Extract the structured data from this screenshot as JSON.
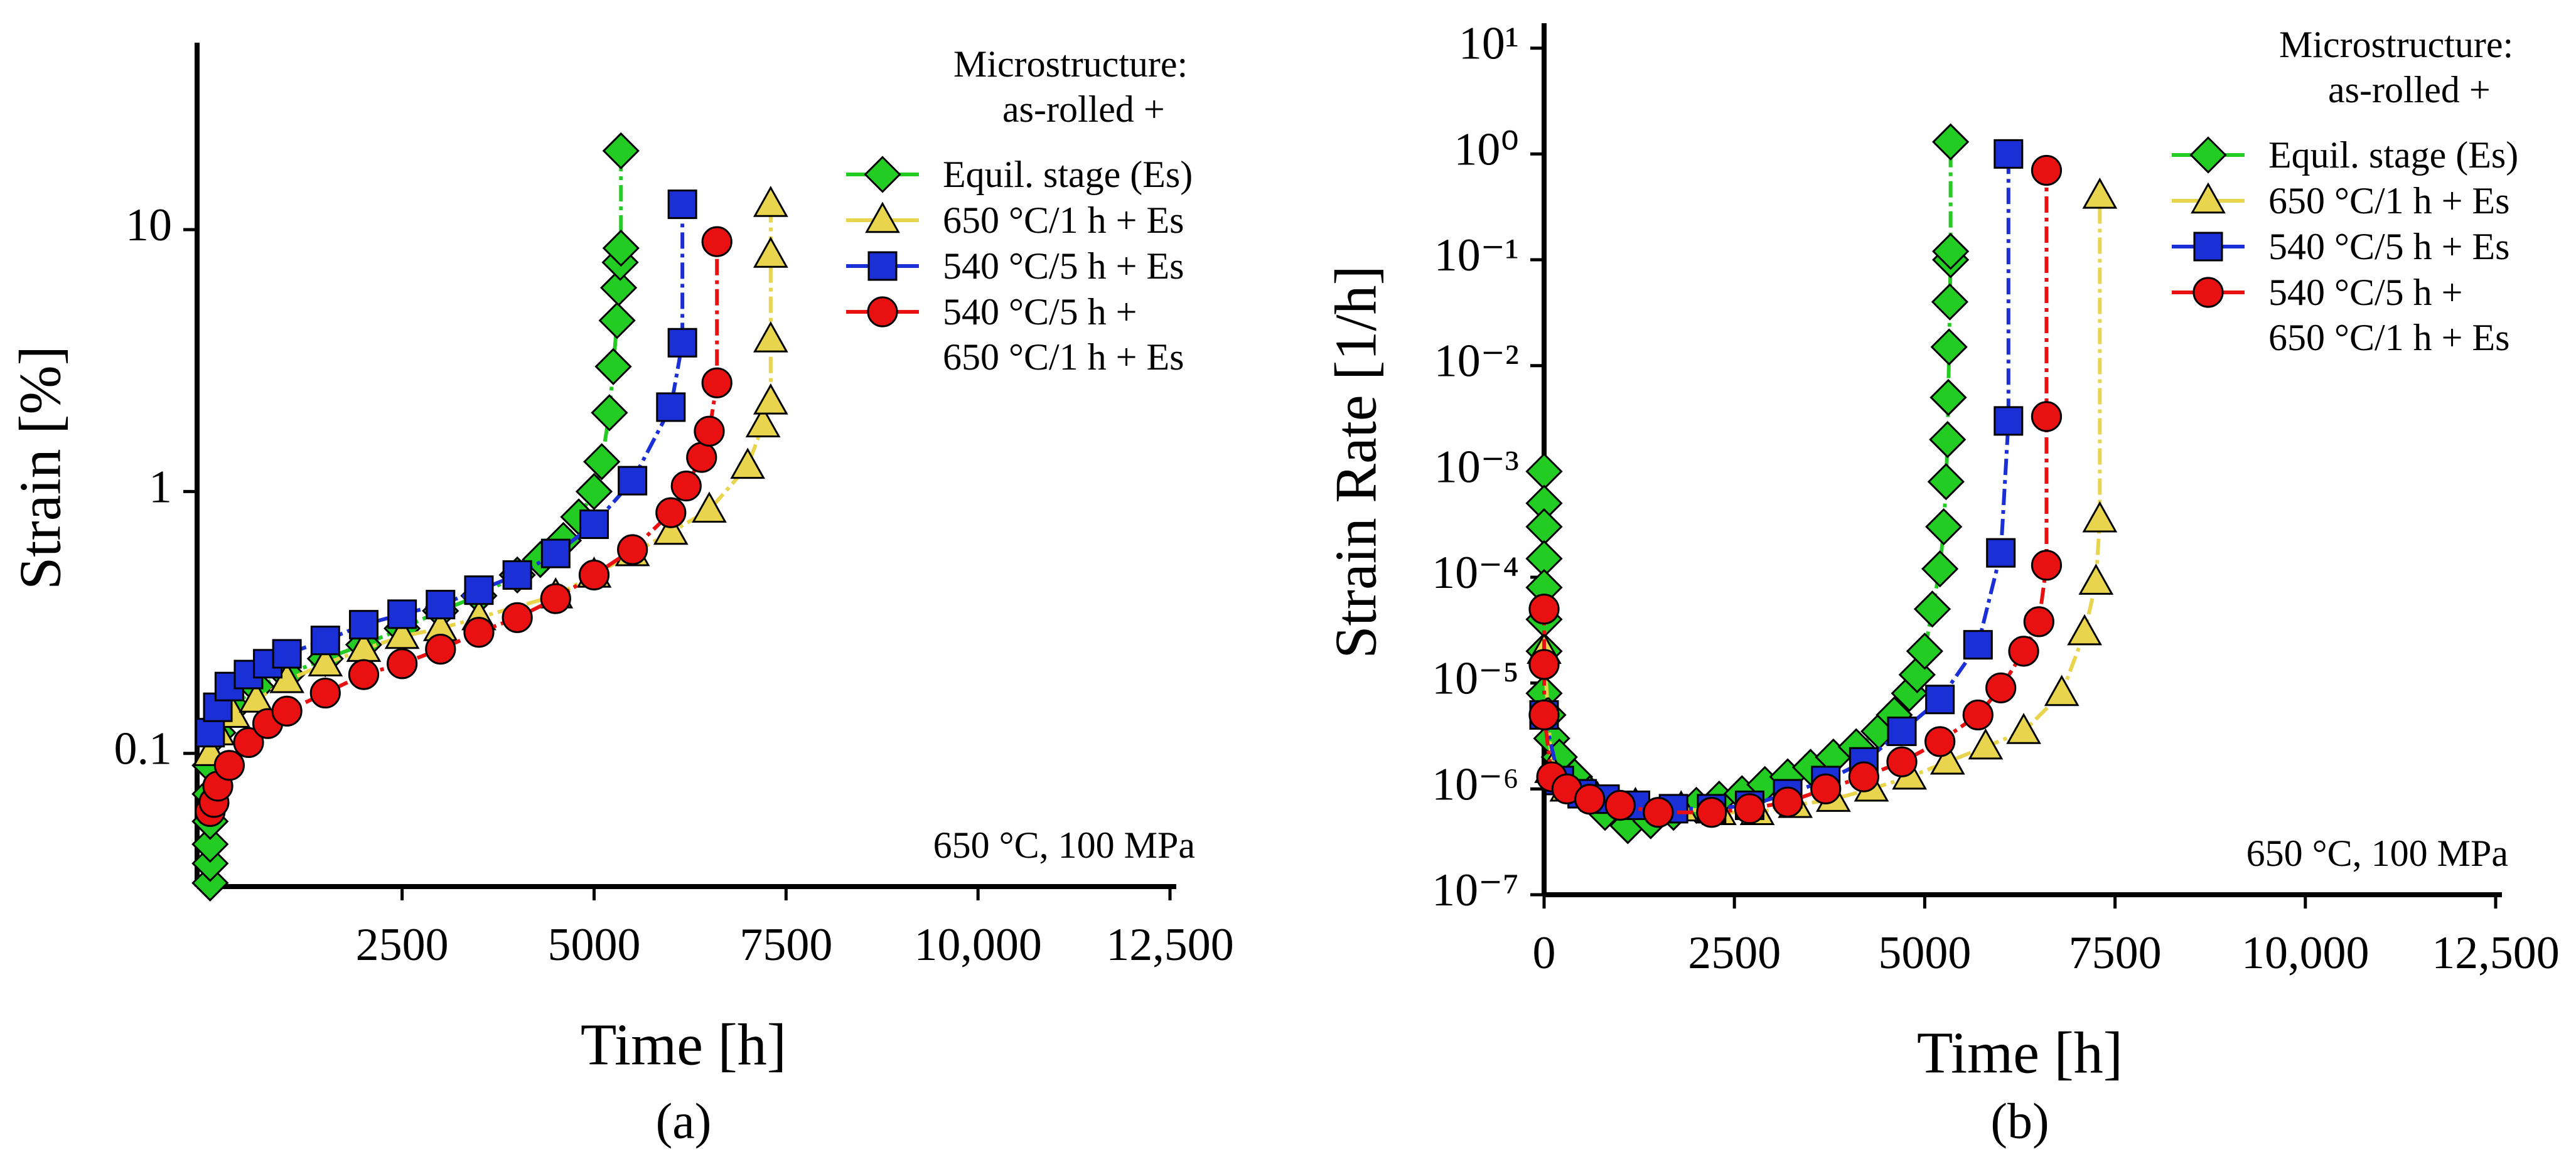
{
  "chart_data": [
    {
      "type": "line",
      "panel_label": "(a)",
      "xlabel": "Time [h]",
      "ylabel": "Strain [%]",
      "yscale": "log",
      "xlim": [
        -170,
        12500
      ],
      "ylim": [
        0.031,
        49
      ],
      "xticks": [
        2500,
        5000,
        7500,
        {
          "value": 10000,
          "label": "10,000"
        },
        {
          "value": 12500,
          "label": "12,500"
        }
      ],
      "yticks": [
        0.1,
        1,
        10
      ],
      "legend": "upper right",
      "legend_title": [
        "Microstructure:",
        "as-rolled +"
      ],
      "annotation": "650 °C, 100 MPa",
      "series": [
        {
          "name": "Equil. stage (Es)",
          "color": "#22cc22",
          "marker": "diamond",
          "x": [
            0,
            0,
            0,
            0,
            0,
            0,
            100,
            300,
            600,
            1000,
            1500,
            2000,
            2500,
            3000,
            3500,
            4000,
            4300,
            4600,
            4800,
            5000,
            5100,
            5200,
            5250,
            5300,
            5320,
            5340,
            5350,
            5350
          ],
          "values": [
            0.032,
            0.038,
            0.045,
            0.055,
            0.07,
            0.09,
            0.12,
            0.15,
            0.18,
            0.2,
            0.23,
            0.26,
            0.3,
            0.35,
            0.4,
            0.48,
            0.55,
            0.65,
            0.8,
            1.0,
            1.3,
            2.0,
            3.0,
            4.5,
            6,
            7.5,
            8.5,
            20
          ]
        },
        {
          "name": "650 °C/1 h + Es",
          "color": "#e8d44d",
          "marker": "triangle",
          "x": [
            0,
            100,
            300,
            600,
            1000,
            1500,
            2000,
            2500,
            3000,
            3500,
            4500,
            5000,
            5500,
            6000,
            6500,
            7000,
            7200,
            7300,
            7300,
            7300,
            7300
          ],
          "values": [
            0.1,
            0.12,
            0.14,
            0.16,
            0.19,
            0.22,
            0.25,
            0.28,
            0.3,
            0.33,
            0.4,
            0.48,
            0.58,
            0.7,
            0.85,
            1.25,
            1.8,
            2.2,
            3.8,
            8,
            12.5
          ]
        },
        {
          "name": "540 °C/5 h + Es",
          "color": "#1a2fd6",
          "marker": "square",
          "x": [
            0,
            100,
            250,
            500,
            750,
            1000,
            1500,
            2000,
            2500,
            3000,
            3500,
            4000,
            4500,
            5000,
            5500,
            6000,
            6150,
            6150
          ],
          "values": [
            0.12,
            0.15,
            0.18,
            0.2,
            0.22,
            0.24,
            0.27,
            0.31,
            0.34,
            0.37,
            0.42,
            0.48,
            0.58,
            0.75,
            1.1,
            2.1,
            3.7,
            12.5
          ]
        },
        {
          "name": "540 °C/5 h +\n650 °C/1 h + Es",
          "color": "#e81010",
          "marker": "circle",
          "x": [
            0,
            50,
            100,
            250,
            500,
            750,
            1000,
            1500,
            2000,
            2500,
            3000,
            3500,
            4000,
            4500,
            5000,
            5500,
            6000,
            6200,
            6400,
            6500,
            6600,
            6600
          ],
          "values": [
            0.06,
            0.065,
            0.075,
            0.09,
            0.11,
            0.13,
            0.145,
            0.17,
            0.2,
            0.22,
            0.25,
            0.29,
            0.33,
            0.39,
            0.48,
            0.6,
            0.83,
            1.05,
            1.35,
            1.7,
            2.6,
            9
          ]
        }
      ]
    },
    {
      "type": "line",
      "panel_label": "(b)",
      "xlabel": "Time [h]",
      "ylabel": "Strain Rate [1/h]",
      "yscale": "log",
      "xlim": [
        0,
        12500
      ],
      "ylim": [
        1e-07,
        15
      ],
      "xticks": [
        0,
        2500,
        5000,
        7500,
        {
          "value": 10000,
          "label": "10,000"
        },
        {
          "value": 12500,
          "label": "12,500"
        }
      ],
      "yticks": [
        {
          "value": 10,
          "label": "10¹"
        },
        {
          "value": 1,
          "label": "10⁰"
        },
        {
          "value": 0.1,
          "label": "10⁻¹"
        },
        {
          "value": 0.01,
          "label": "10⁻²"
        },
        {
          "value": 0.001,
          "label": "10⁻³"
        },
        {
          "value": 0.0001,
          "label": "10⁻⁴"
        },
        {
          "value": 1e-05,
          "label": "10⁻⁵"
        },
        {
          "value": 1e-06,
          "label": "10⁻⁶"
        },
        {
          "value": 1e-07,
          "label": "10⁻⁷"
        }
      ],
      "legend": "upper right",
      "legend_title": [
        "Microstructure:",
        "as-rolled +"
      ],
      "annotation": "650 °C, 100 MPa",
      "series": [
        {
          "name": "Equil. stage (Es)",
          "color": "#22cc22",
          "marker": "diamond",
          "x": [
            0,
            0,
            0,
            0,
            0,
            0,
            0,
            0,
            50,
            100,
            200,
            400,
            600,
            800,
            1100,
            1400,
            1700,
            2000,
            2300,
            2600,
            2900,
            3200,
            3500,
            3800,
            4100,
            4400,
            4600,
            4800,
            4900,
            5000,
            5100,
            5200,
            5250,
            5280,
            5300,
            5310,
            5320,
            5330,
            5340,
            5340,
            5340
          ],
          "values": [
            0.001,
            0.0005,
            0.0003,
            0.00015,
            8e-05,
            4e-05,
            2e-05,
            8e-06,
            5e-06,
            3e-06,
            2e-06,
            1.3e-06,
            9e-07,
            6e-07,
            4.5e-07,
            5e-07,
            6e-07,
            7e-07,
            8e-07,
            9e-07,
            1.1e-06,
            1.3e-06,
            1.6e-06,
            2e-06,
            2.5e-06,
            3.5e-06,
            5e-06,
            8e-06,
            1.2e-05,
            2e-05,
            5e-05,
            0.00012,
            0.0003,
            0.0008,
            0.002,
            0.005,
            0.015,
            0.04,
            0.1,
            0.12,
            1.3
          ]
        },
        {
          "name": "650 °C/1 h + Es",
          "color": "#e8d44d",
          "marker": "triangle",
          "x": [
            0,
            100,
            300,
            700,
            1200,
            1800,
            2300,
            2800,
            3300,
            3800,
            4300,
            4800,
            5300,
            5800,
            6300,
            6800,
            7100,
            7250,
            7300,
            7300
          ],
          "values": [
            2e-05,
            1.5e-06,
            1e-06,
            8e-07,
            7e-07,
            6.5e-07,
            6e-07,
            6e-07,
            7e-07,
            8e-07,
            1e-06,
            1.3e-06,
            1.8e-06,
            2.5e-06,
            3.5e-06,
            8e-06,
            3e-05,
            9e-05,
            0.00035,
            0.4
          ]
        },
        {
          "name": "540 °C/5 h + Es",
          "color": "#1a2fd6",
          "marker": "square",
          "x": [
            0,
            200,
            500,
            800,
            1200,
            1700,
            2200,
            2700,
            3200,
            3700,
            4200,
            4700,
            5200,
            5700,
            6000,
            6100,
            6100
          ],
          "values": [
            5e-06,
            1.2e-06,
            9e-07,
            8e-07,
            7e-07,
            6.5e-07,
            6.5e-07,
            7e-07,
            9e-07,
            1.2e-06,
            1.8e-06,
            3.5e-06,
            7e-06,
            2.3e-05,
            0.00017,
            0.003,
            1.0
          ]
        },
        {
          "name": "540 °C/5 h +\n650 °C/1 h + Es",
          "color": "#e81010",
          "marker": "circle",
          "x": [
            0,
            0,
            0,
            100,
            300,
            600,
            1000,
            1500,
            2200,
            2700,
            3200,
            3700,
            4200,
            4700,
            5200,
            5700,
            6000,
            6300,
            6500,
            6600,
            6600,
            6600
          ],
          "values": [
            5e-05,
            1.5e-05,
            5e-06,
            1.3e-06,
            1e-06,
            8e-07,
            7e-07,
            6e-07,
            6e-07,
            6.5e-07,
            7.5e-07,
            1e-06,
            1.3e-06,
            1.8e-06,
            2.8e-06,
            5e-06,
            9e-06,
            2e-05,
            3.8e-05,
            0.00013,
            0.0033,
            0.7
          ]
        }
      ]
    }
  ]
}
